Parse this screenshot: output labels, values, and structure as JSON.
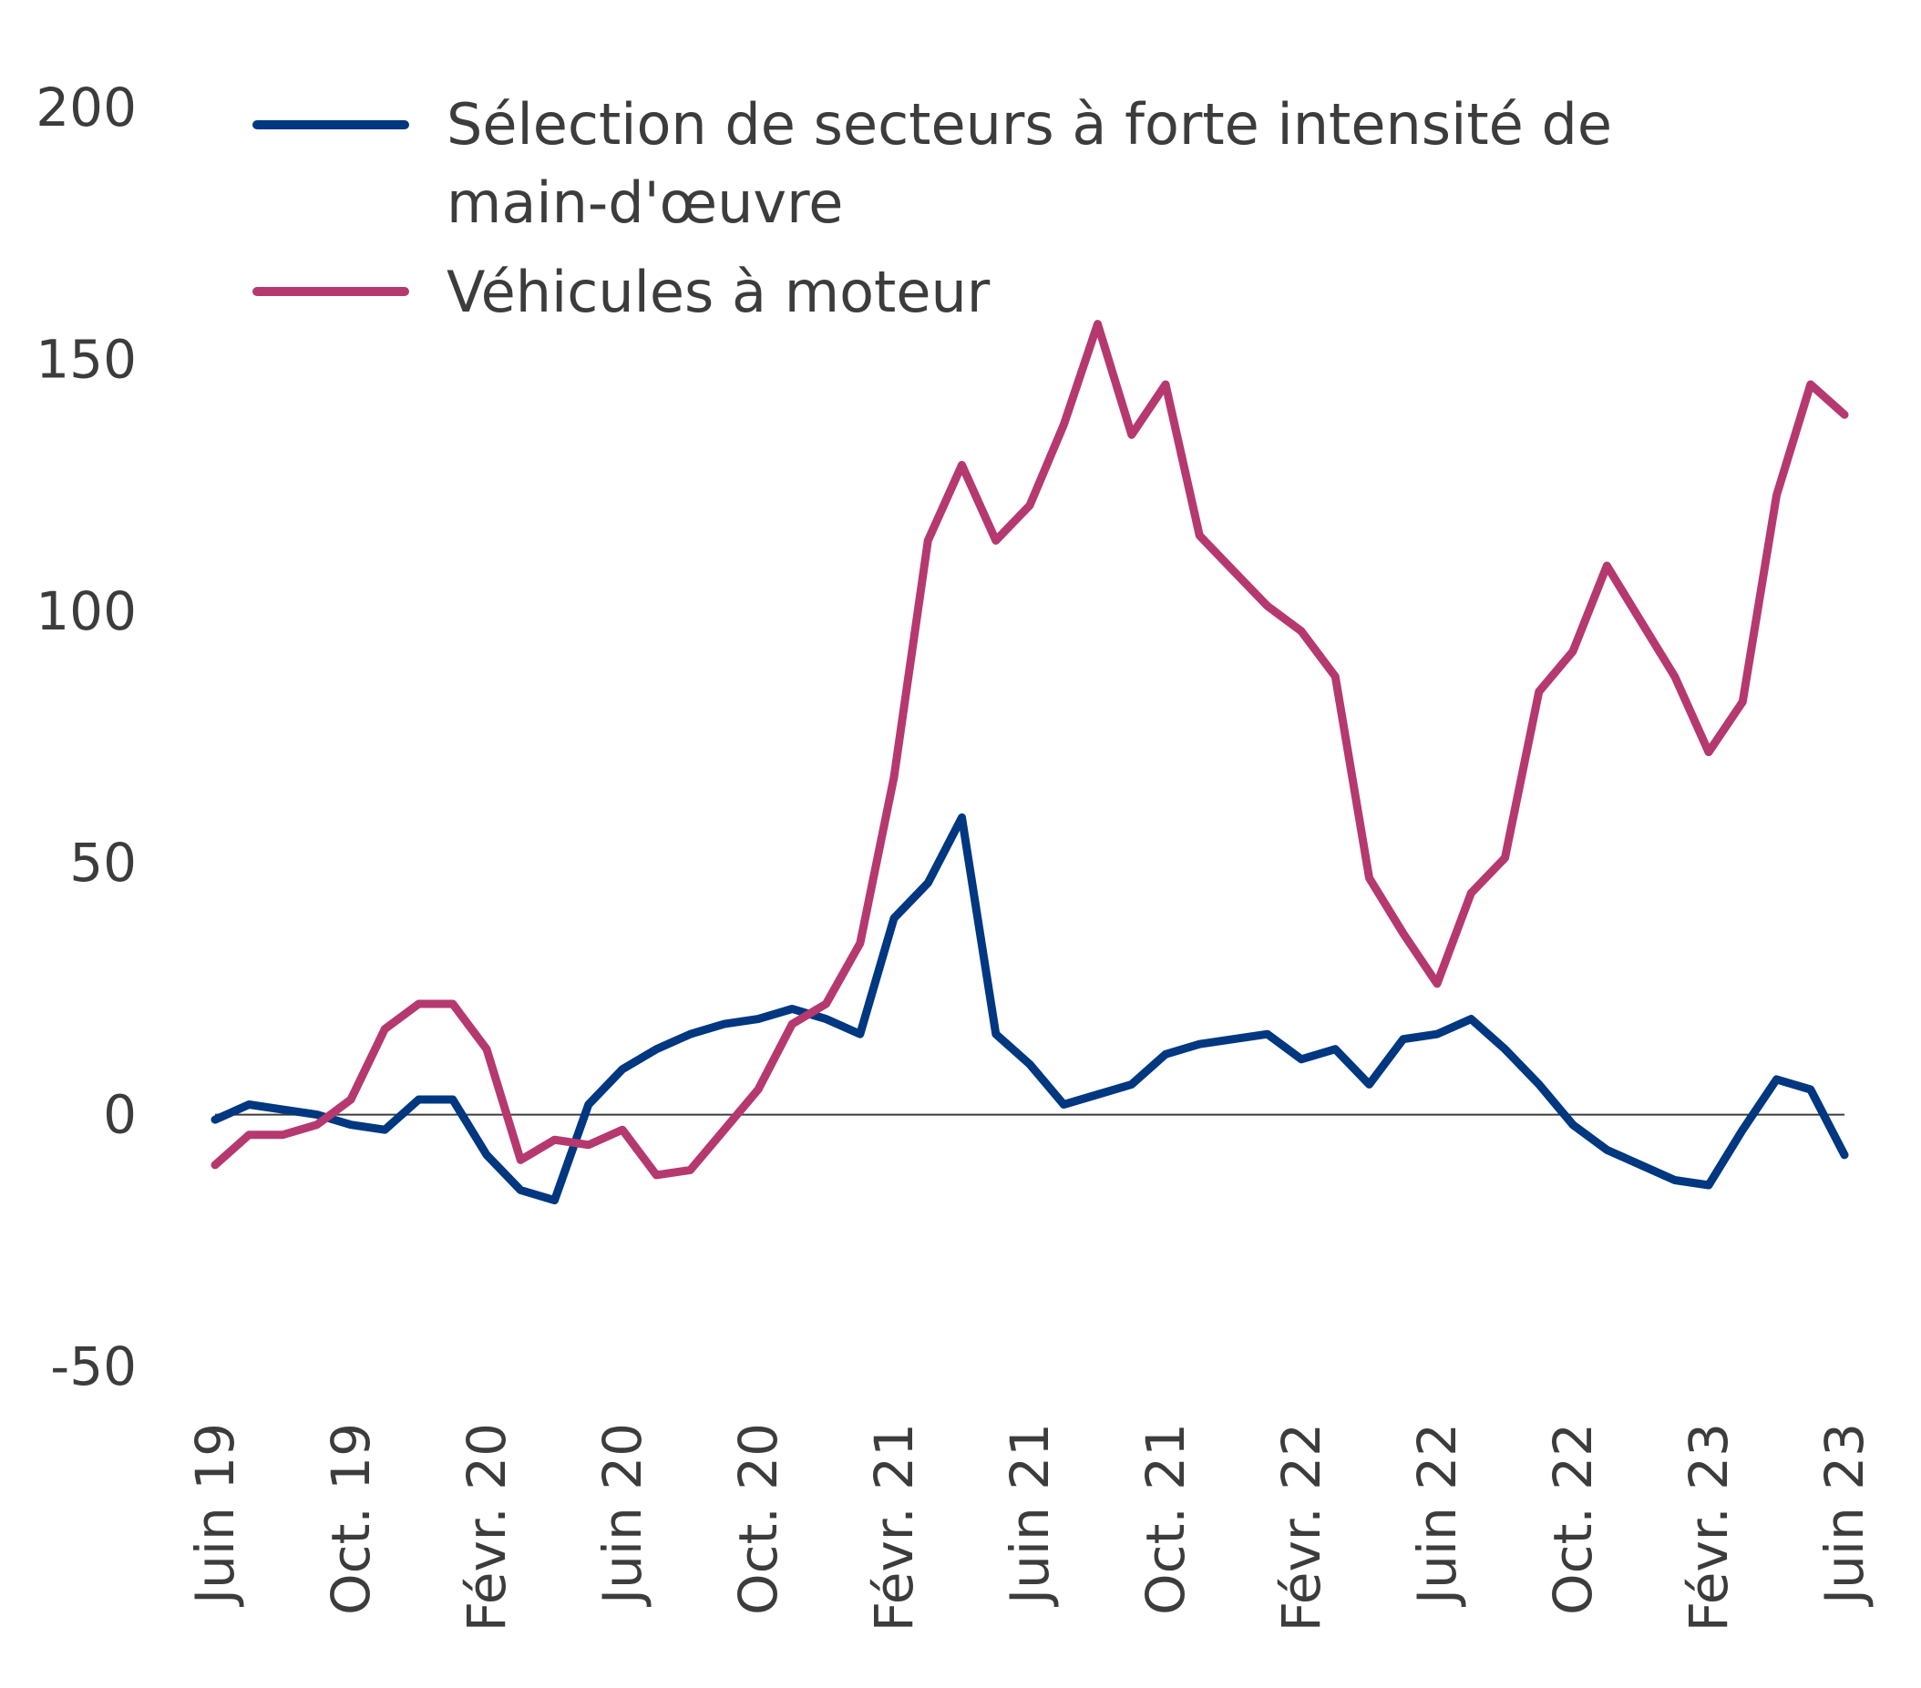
{
  "chart_data": {
    "type": "line",
    "title": "",
    "xlabel": "",
    "ylabel": "",
    "ylim": [
      -50,
      200
    ],
    "yticks": [
      200,
      150,
      100,
      50,
      0,
      -50
    ],
    "ytick_labels": [
      "200",
      "150",
      "100",
      "50",
      "0",
      "-50"
    ],
    "xtick_labels": [
      "Juin 19",
      "Oct. 19",
      "Févr. 20",
      "Juin 20",
      "Oct. 20",
      "Févr. 21",
      "Juin 21",
      "Oct. 21",
      "Févr. 22",
      "Juin 22",
      "Oct. 22",
      "Févr. 23",
      "Juin 23"
    ],
    "x": [
      "2019-06",
      "2019-07",
      "2019-08",
      "2019-09",
      "2019-10",
      "2019-11",
      "2019-12",
      "2020-01",
      "2020-02",
      "2020-03",
      "2020-04",
      "2020-05",
      "2020-06",
      "2020-07",
      "2020-08",
      "2020-09",
      "2020-10",
      "2020-11",
      "2020-12",
      "2021-01",
      "2021-02",
      "2021-03",
      "2021-04",
      "2021-05",
      "2021-06",
      "2021-07",
      "2021-08",
      "2021-09",
      "2021-10",
      "2021-11",
      "2021-12",
      "2022-01",
      "2022-02",
      "2022-03",
      "2022-04",
      "2022-05",
      "2022-06",
      "2022-07",
      "2022-08",
      "2022-09",
      "2022-10",
      "2022-11",
      "2022-12",
      "2023-01",
      "2023-02",
      "2023-03",
      "2023-04",
      "2023-05",
      "2023-06"
    ],
    "grid": false,
    "zero_line": true,
    "legend_position": "top-left",
    "series": [
      {
        "name": "Sélection de secteurs à forte intensité de main-d'œuvre",
        "color": "#003781",
        "values": [
          -1,
          2,
          1,
          0,
          -2,
          -3,
          3,
          3,
          -8,
          -15,
          -17,
          2,
          9,
          13,
          16,
          18,
          19,
          21,
          19,
          16,
          39,
          46,
          59,
          16,
          10,
          2,
          4,
          6,
          12,
          14,
          15,
          16,
          11,
          13,
          6,
          15,
          16,
          19,
          13,
          6,
          -2,
          -7,
          -10,
          -13,
          -14,
          -3,
          7,
          5,
          -8
        ]
      },
      {
        "name": "Véhicules à moteur",
        "color": "#b5396f",
        "values": [
          -10,
          -4,
          -4,
          -2,
          3,
          17,
          22,
          22,
          13,
          -9,
          -5,
          -6,
          -3,
          -12,
          -11,
          -3,
          5,
          18,
          22,
          34,
          67,
          114,
          129,
          114,
          121,
          137,
          157,
          135,
          145,
          115,
          108,
          101,
          96,
          87,
          47,
          36,
          26,
          44,
          51,
          84,
          92,
          109,
          98,
          87,
          72,
          82,
          123,
          145,
          139
        ]
      }
    ]
  }
}
